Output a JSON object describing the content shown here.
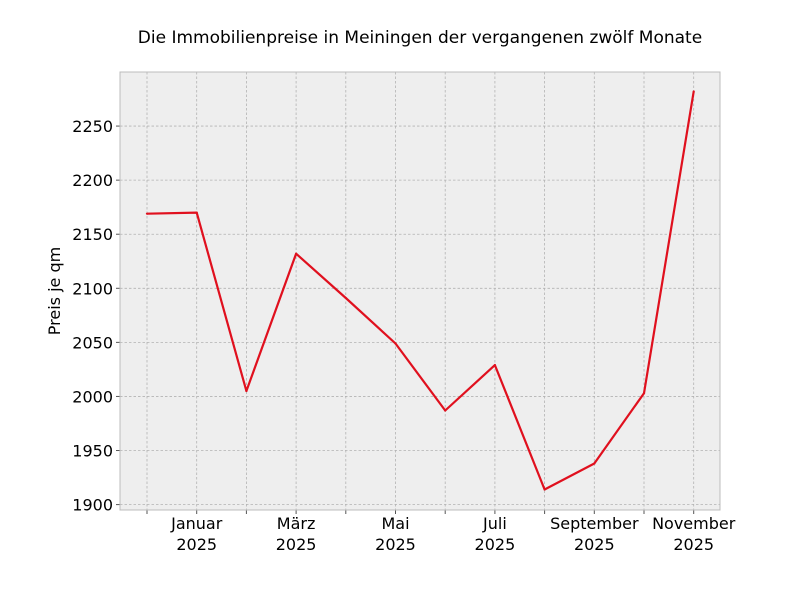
{
  "chart_data": {
    "type": "line",
    "title": "Die Immobilienpreise in Meiningen der vergangenen zwölf Monate",
    "xlabel": "",
    "ylabel": "Preis je qm",
    "grid": true,
    "x": [
      "2024-12",
      "2025-01",
      "2025-02",
      "2025-03",
      "2025-04",
      "2025-05",
      "2025-06",
      "2025-07",
      "2025-08",
      "2025-09",
      "2025-10",
      "2025-11"
    ],
    "series": [
      {
        "values": [
          2169,
          2170,
          2005,
          2132,
          2091,
          2049,
          1987,
          2029,
          1914,
          1938,
          2003,
          2282
        ],
        "color": "#e0101e"
      }
    ],
    "ylim": [
      1895,
      2300
    ],
    "yticks": [
      1900,
      1950,
      2000,
      2050,
      2100,
      2150,
      2200,
      2250
    ],
    "xtick_labels": [
      {
        "month": "Januar",
        "year": "2025"
      },
      {
        "month": "März",
        "year": "2025"
      },
      {
        "month": "Mai",
        "year": "2025"
      },
      {
        "month": "Juli",
        "year": "2025"
      },
      {
        "month": "September",
        "year": "2025"
      },
      {
        "month": "November",
        "year": "2025"
      }
    ],
    "colors": {
      "background": "#eeeeee",
      "grid": "#b2b2b2",
      "frame": "#bcbcbc"
    }
  }
}
